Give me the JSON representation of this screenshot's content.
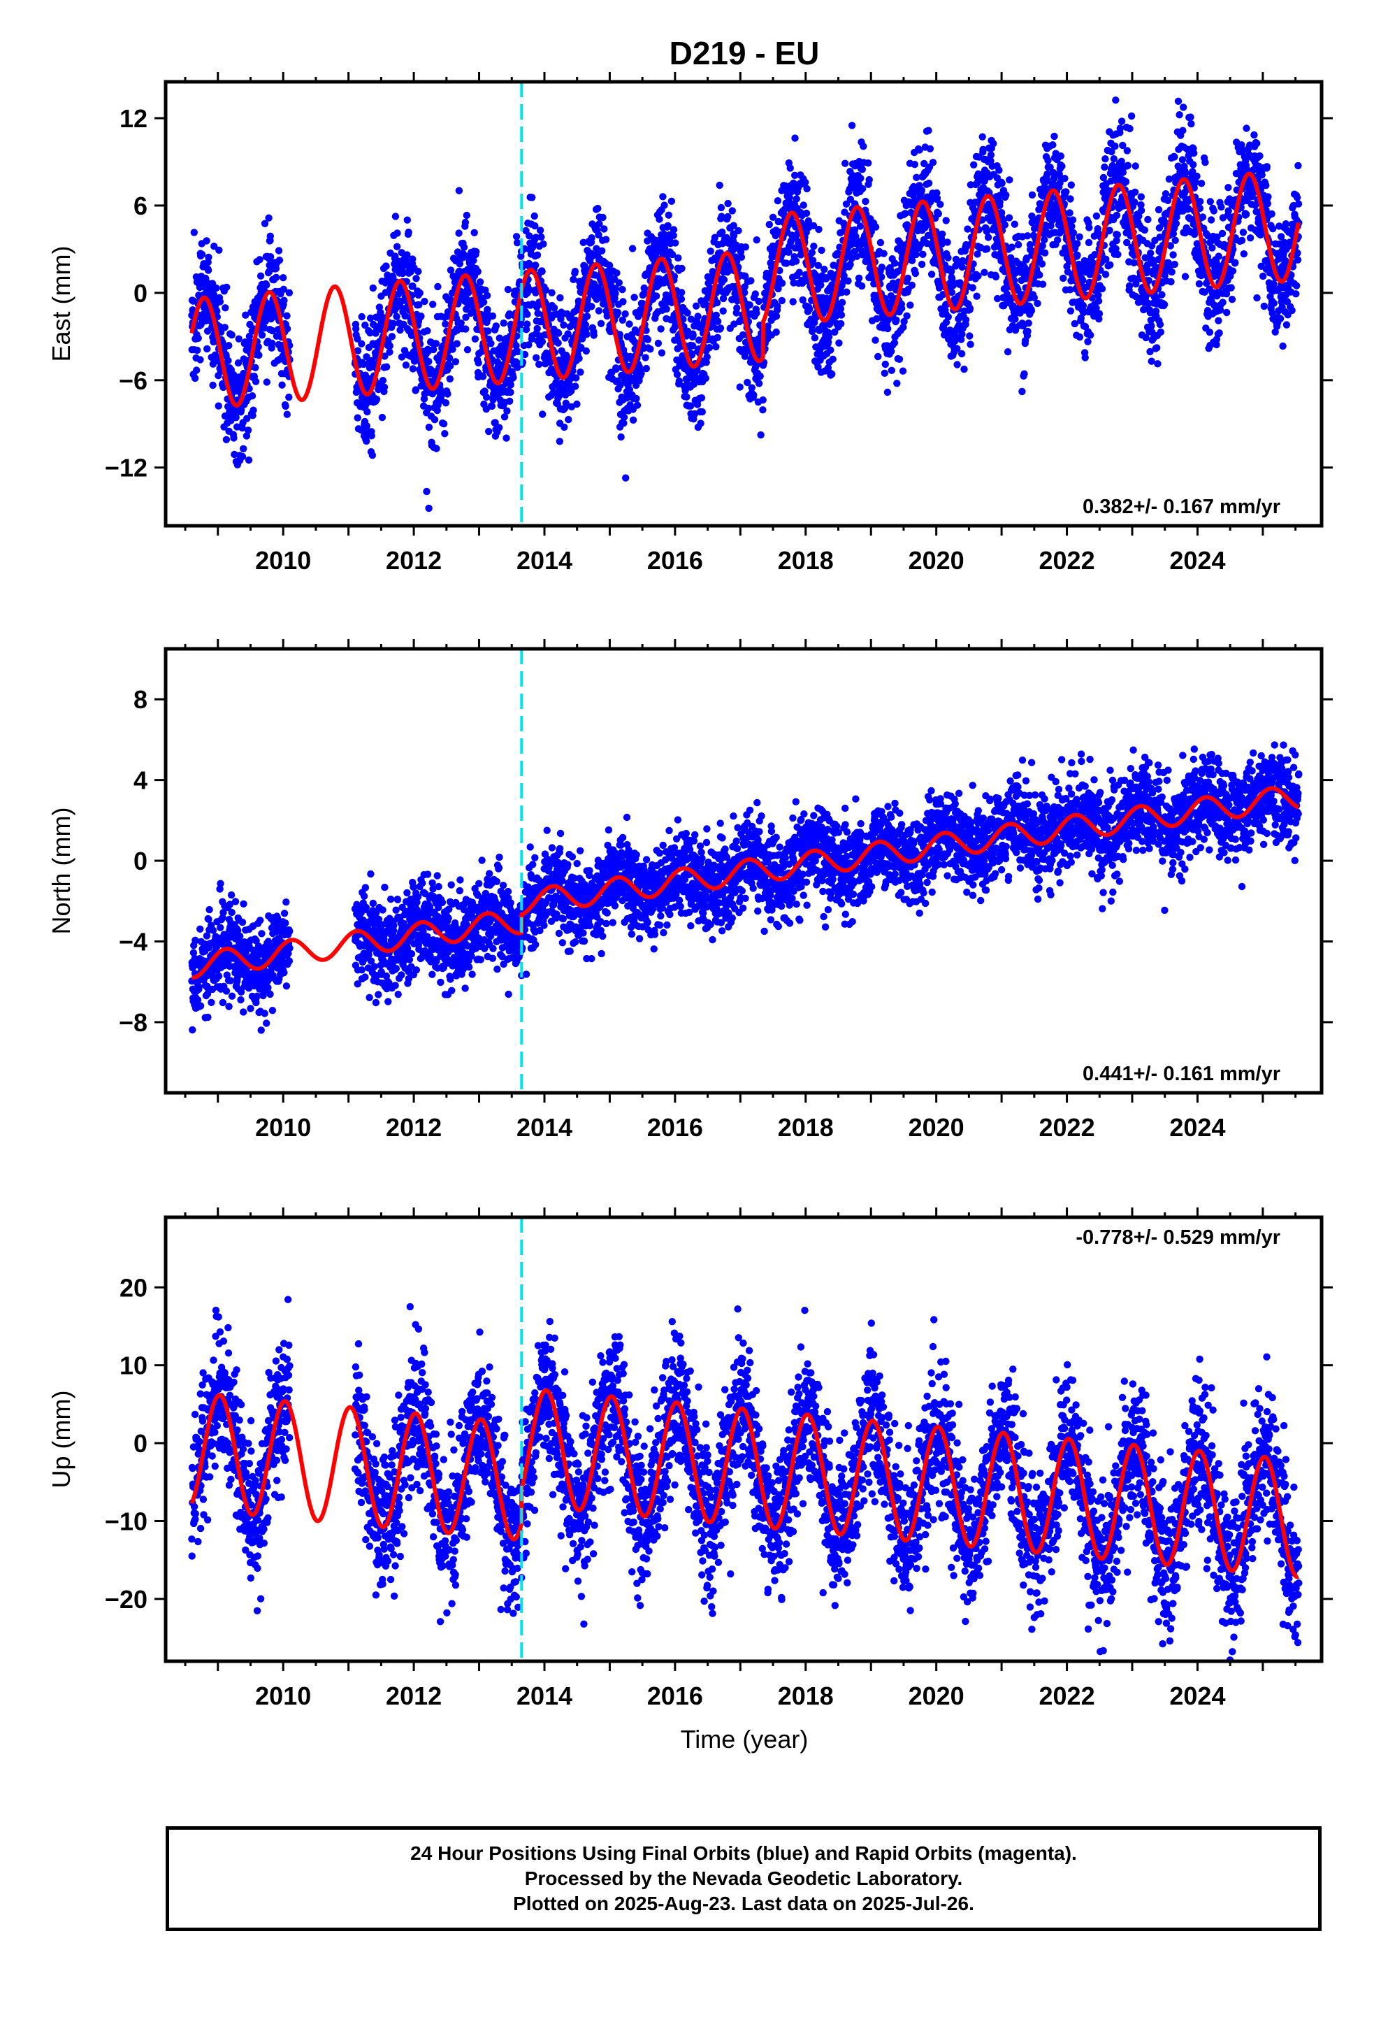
{
  "figure": {
    "title": "D219 - EU",
    "xlabel": "Time (year)"
  },
  "chart_data": [
    {
      "type": "scatter",
      "title": "",
      "xlabel": "",
      "ylabel": "East (mm)",
      "xlim": [
        2008.2,
        2025.9
      ],
      "ylim": [
        -16,
        14.5
      ],
      "x_ticks": [
        2010,
        2012,
        2014,
        2016,
        2018,
        2020,
        2022,
        2024
      ],
      "y_ticks": [
        -12,
        -6,
        0,
        6,
        12
      ],
      "rate_text": "0.382+/- 0.167 mm/yr",
      "rate_position": "bottom-right",
      "equipment_change": 2013.65,
      "model": {
        "name": "",
        "color": "#ff0000",
        "t0": 2008.6,
        "offset": -4.2,
        "rate": 0.382,
        "step_at": 2017.35,
        "step": 2.4,
        "amplitude": 3.8,
        "phase": 2.9
      },
      "observations": {
        "name": "",
        "color": "#0000ff",
        "segments": [
          [
            2008.6,
            2009.4
          ],
          [
            2009.4,
            2010.1
          ],
          [
            2011.1,
            2025.55
          ]
        ],
        "scatter": 2.2
      }
    },
    {
      "type": "scatter",
      "title": "",
      "xlabel": "",
      "ylabel": "North (mm)",
      "xlim": [
        2008.2,
        2025.9
      ],
      "ylim": [
        -11.5,
        10.5
      ],
      "x_ticks": [
        2010,
        2012,
        2014,
        2016,
        2018,
        2020,
        2022,
        2024
      ],
      "y_ticks": [
        -8,
        -4,
        0,
        4,
        8
      ],
      "rate_text": "0.441+/- 0.161 mm/yr",
      "rate_position": "bottom-right",
      "equipment_change": 2013.65,
      "model": {
        "name": "",
        "color": "#ff0000",
        "t0": 2008.6,
        "offset": -5.2,
        "rate": 0.441,
        "step_at": 2013.65,
        "step": 0.9,
        "amplitude": 0.6,
        "phase": 0.8
      },
      "observations": {
        "name": "",
        "color": "#0000ff",
        "segments": [
          [
            2008.6,
            2009.4
          ],
          [
            2009.4,
            2010.1
          ],
          [
            2011.1,
            2025.55
          ]
        ],
        "scatter": 1.1
      }
    },
    {
      "type": "scatter",
      "title": "",
      "xlabel": "Time (year)",
      "ylabel": "Up (mm)",
      "xlim": [
        2008.2,
        2025.9
      ],
      "ylim": [
        -28,
        29
      ],
      "x_ticks": [
        2010,
        2012,
        2014,
        2016,
        2018,
        2020,
        2022,
        2024
      ],
      "y_ticks": [
        -20,
        -10,
        0,
        10,
        20
      ],
      "rate_text": "-0.778+/- 0.529 mm/yr",
      "rate_position": "top-right",
      "equipment_change": 2013.65,
      "model": {
        "name": "",
        "color": "#ff0000",
        "t0": 2008.6,
        "offset": -1.0,
        "rate": -0.778,
        "step_at": 2013.65,
        "step": 4.5,
        "amplitude": 7.5,
        "phase": 1.4
      },
      "observations": {
        "name": "",
        "color": "#0000ff",
        "segments": [
          [
            2008.6,
            2009.4
          ],
          [
            2009.4,
            2010.1
          ],
          [
            2011.1,
            2025.55
          ]
        ],
        "scatter": 4.5
      }
    }
  ],
  "footer": {
    "line1": "24 Hour Positions Using Final Orbits (blue) and Rapid Orbits (magenta).",
    "line2": "Processed by the Nevada Geodetic Laboratory.",
    "line3": "Plotted on 2025-Aug-23. Last data on 2025-Jul-26."
  },
  "colors": {
    "observations": "#0000ff",
    "model": "#ff0000",
    "equipment_change": "#00e5ee",
    "frame": "#000000"
  }
}
